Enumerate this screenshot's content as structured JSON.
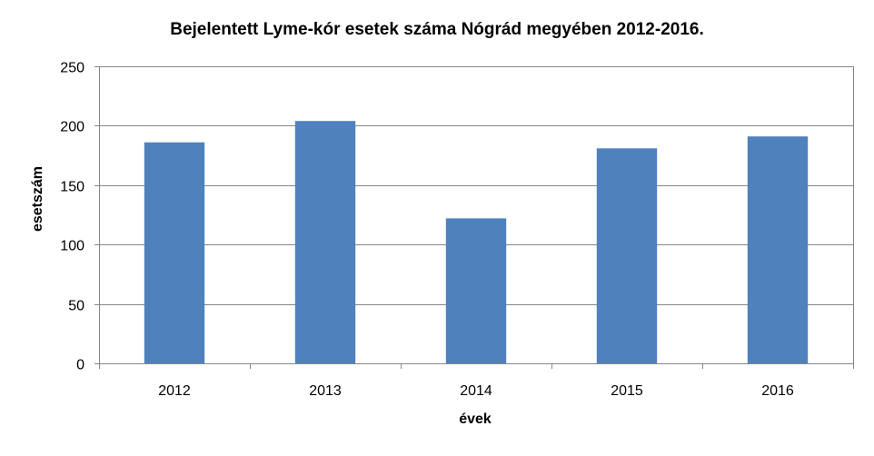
{
  "chart_data": {
    "type": "bar",
    "title": "Bejelentett Lyme-kór esetek száma Nógrád megyében 2012-2016.",
    "xlabel": "évek",
    "ylabel": "esetszám",
    "categories": [
      "2012",
      "2013",
      "2014",
      "2015",
      "2016"
    ],
    "series": [
      {
        "values": [
          186,
          204,
          122,
          181,
          191
        ],
        "color": "#4f81bd"
      }
    ],
    "ylim": [
      0,
      250
    ],
    "yticks": [
      0,
      50,
      100,
      150,
      200,
      250
    ],
    "grid": true,
    "legend": "none"
  }
}
